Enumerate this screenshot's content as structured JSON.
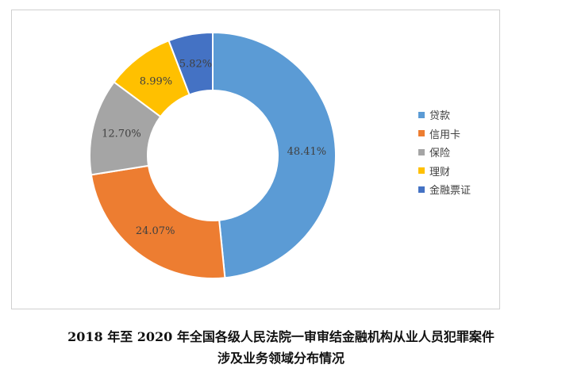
{
  "chart_data": {
    "type": "pie",
    "donut": true,
    "title": "",
    "categories": [
      "贷款",
      "信用卡",
      "保险",
      "理财",
      "金融票证"
    ],
    "values": [
      48.41,
      24.07,
      12.7,
      8.99,
      5.82
    ],
    "value_labels": [
      "48.41%",
      "24.07%",
      "12.70%",
      "8.99%",
      "5.82%"
    ],
    "colors": [
      "#5b9bd5",
      "#ed7d31",
      "#a5a5a5",
      "#ffc000",
      "#4472c4"
    ],
    "legend_position": "right"
  },
  "caption": {
    "line1": "2018 年至 2020 年全国各级人民法院一审审结金融机构从业人员犯罪案件",
    "line2": "涉及业务领域分布情况"
  }
}
